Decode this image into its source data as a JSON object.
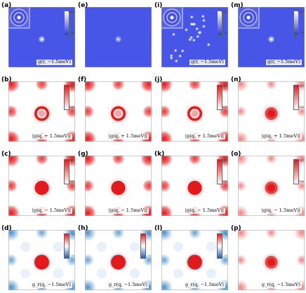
{
  "panels": [
    {
      "id": "a",
      "label": "(a)",
      "caption": "g(r, −1.5meV)",
      "kind": "blue",
      "dots": "single",
      "inset": true,
      "cbar": "mono",
      "cb_top": "high",
      "cb_bot": "low"
    },
    {
      "id": "e",
      "label": "(e)",
      "caption": "",
      "kind": "blue",
      "dots": "single-faint",
      "inset": false,
      "cbar": "none",
      "cb_top": "",
      "cb_bot": ""
    },
    {
      "id": "i",
      "label": "(i)",
      "caption": "g(r, −1.5meV)",
      "kind": "blue",
      "dots": "many",
      "inset": true,
      "cbar": "mono",
      "cb_top": "high",
      "cb_bot": "low"
    },
    {
      "id": "m",
      "label": "(m)",
      "caption": "g(r, −1.5meV)",
      "kind": "blue",
      "dots": "single",
      "inset": true,
      "cbar": "mono",
      "cb_top": "high",
      "cb_bot": "low"
    },
    {
      "id": "b",
      "label": "(b)",
      "caption": "|g(q, + 1.5meV)|",
      "kind": "ring",
      "dots": "",
      "inset": false,
      "cbar": "red",
      "cb_top": "high",
      "cb_bot": "low"
    },
    {
      "id": "f",
      "label": "(f)",
      "caption": "|g(q, + 1.5meV)|",
      "kind": "ring",
      "dots": "",
      "inset": false,
      "cbar": "none",
      "cb_top": "",
      "cb_bot": ""
    },
    {
      "id": "j",
      "label": "(j)",
      "caption": "|g(q, + 1.5meV)|",
      "kind": "ring",
      "dots": "",
      "inset": false,
      "cbar": "red",
      "cb_top": "high",
      "cb_bot": "low"
    },
    {
      "id": "n",
      "label": "(n)",
      "caption": "|g(q, + 1.5meV)|",
      "kind": "soft",
      "dots": "",
      "inset": false,
      "cbar": "red",
      "cb_top": "high",
      "cb_bot": "low"
    },
    {
      "id": "c",
      "label": "(c)",
      "caption": "|g(q, − 1.5meV)|",
      "kind": "disc",
      "dots": "",
      "inset": false,
      "cbar": "red",
      "cb_top": "high",
      "cb_bot": "low"
    },
    {
      "id": "g",
      "label": "(g)",
      "caption": "|g(q, − 1.5meV)|",
      "kind": "disc",
      "dots": "",
      "inset": false,
      "cbar": "none",
      "cb_top": "",
      "cb_bot": ""
    },
    {
      "id": "k",
      "label": "(k)",
      "caption": "|g(q, − 1.5meV)|",
      "kind": "disc",
      "dots": "",
      "inset": false,
      "cbar": "red",
      "cb_top": "high",
      "cb_bot": "low"
    },
    {
      "id": "o",
      "label": "(o)",
      "caption": "|g(q, − 1.5meV)|",
      "kind": "soft",
      "dots": "",
      "inset": false,
      "cbar": "red",
      "cb_top": "high",
      "cb_bot": "low"
    },
    {
      "id": "d",
      "label": "(d)",
      "caption": "g_r(q, −1.5meV)",
      "kind": "div",
      "dots": "",
      "inset": false,
      "cbar": "div",
      "cb_top": "+",
      "cb_bot": "−"
    },
    {
      "id": "h",
      "label": "(h)",
      "caption": "g_r(q, −1.5meV)",
      "kind": "div",
      "dots": "",
      "inset": false,
      "cbar": "div",
      "cb_top": "+",
      "cb_bot": "−"
    },
    {
      "id": "l",
      "label": "(l)",
      "caption": "g_r(q, −1.5meV)",
      "kind": "div",
      "dots": "",
      "inset": false,
      "cbar": "div",
      "cb_top": "+",
      "cb_bot": "−"
    },
    {
      "id": "p",
      "label": "(p)",
      "caption": "g_r(q, −1.5meV)",
      "kind": "soft",
      "dots": "",
      "inset": false,
      "cbar": "none",
      "cb_top": "",
      "cb_bot": ""
    }
  ],
  "colors": {
    "blue_bg": "#4756e6",
    "red": "#e31a1c",
    "light_red": "#fbd3d3",
    "neg_blue": "#4a90c8",
    "frame": "#9a9a9a"
  }
}
